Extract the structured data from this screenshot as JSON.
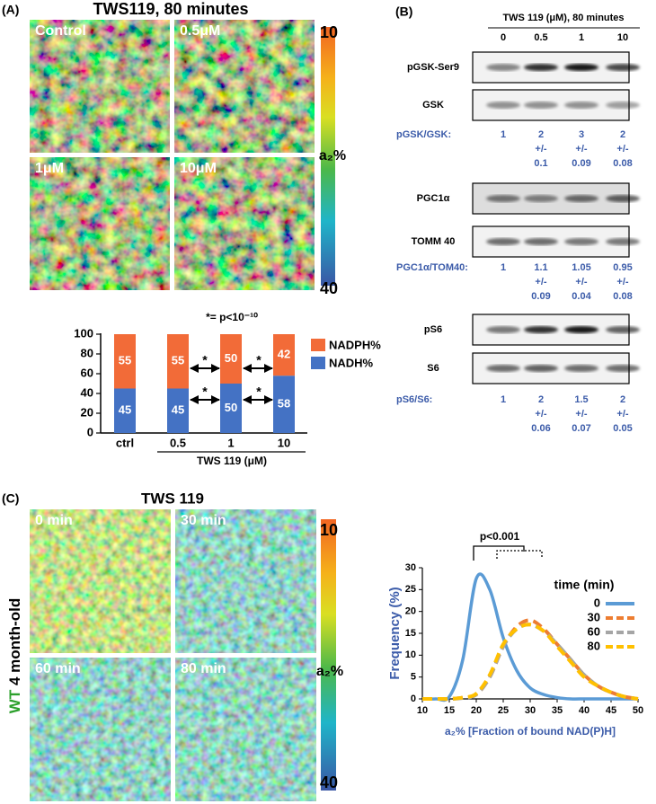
{
  "panel_a": {
    "label": "(A)",
    "title": "TWS119, 80 minutes",
    "images": [
      "Control",
      "0.5μM",
      "1μM",
      "10μM"
    ],
    "colorbar": {
      "top": 10,
      "label": "a₂%",
      "bottom": 40
    }
  },
  "panel_b": {
    "label": "(B)",
    "header": "TWS 119 (μM), 80 minutes",
    "doses": [
      0,
      0.5,
      1,
      10
    ],
    "pm": "+/-",
    "groups": [
      {
        "blots": [
          "pGSK-Ser9",
          "GSK"
        ],
        "ratio": "pGSK/GSK:",
        "values": [
          1,
          2,
          3,
          2
        ],
        "errors": [
          null,
          0.1,
          0.09,
          0.08
        ]
      },
      {
        "blots": [
          "PGC1α",
          "TOMM 40"
        ],
        "ratio": "PGC1α/TOM40:",
        "values": [
          1,
          1.1,
          1.05,
          0.95
        ],
        "errors": [
          null,
          0.09,
          0.04,
          0.08
        ]
      },
      {
        "blots": [
          "pS6",
          "S6"
        ],
        "ratio": "pS6/S6:",
        "values": [
          1,
          2,
          1.5,
          2
        ],
        "errors": [
          null,
          0.06,
          0.07,
          0.05
        ]
      }
    ]
  },
  "panel_c": {
    "label": "(C)",
    "title": "TWS 119",
    "images": [
      "0 min",
      "30 min",
      "60 min",
      "80 min"
    ],
    "side_label": [
      "WT",
      "4 month-old"
    ],
    "colorbar": {
      "top": 10,
      "label": "a₂%",
      "bottom": 40
    }
  },
  "chart_data": [
    {
      "type": "bar",
      "stacked": true,
      "annotation": "*= p<10⁻¹⁰",
      "categories": [
        "ctrl",
        "0.5",
        "1",
        "10"
      ],
      "x_label": "TWS 119 (μM)",
      "series": [
        {
          "name": "NADH%",
          "color": "#4472c4",
          "values": [
            45,
            45,
            50,
            58
          ]
        },
        {
          "name": "NADPH%",
          "color": "#f26b38",
          "values": [
            55,
            55,
            50,
            42
          ]
        }
      ],
      "significance": [
        "*",
        "*",
        "*",
        "*"
      ],
      "ylim": [
        0,
        100
      ],
      "yticks": [
        0,
        20,
        40,
        60,
        80,
        100
      ]
    },
    {
      "type": "line",
      "annotation": "p<0.001",
      "xlabel": "a₂% [Fraction of bound NAD(P)H]",
      "ylabel": "Frequency (%)",
      "legend_title": "time (min)",
      "x": [
        10,
        12.5,
        15,
        17.5,
        20,
        22.5,
        25,
        27.5,
        30,
        32.5,
        35,
        37.5,
        40,
        42.5,
        45,
        47.5,
        50
      ],
      "series": [
        {
          "name": "0",
          "color": "#5b9bd5",
          "dash": false,
          "values": [
            0,
            0,
            0.5,
            9,
            27.5,
            25,
            14,
            6.5,
            2.5,
            1,
            0.3,
            0,
            0,
            0,
            0,
            0,
            0
          ]
        },
        {
          "name": "30",
          "color": "#ed7d31",
          "dash": true,
          "values": [
            0,
            0,
            0,
            0.3,
            1,
            5,
            12,
            16.5,
            18,
            16,
            12.5,
            9,
            5.5,
            3,
            1.5,
            0.5,
            0
          ]
        },
        {
          "name": "60",
          "color": "#a5a5a5",
          "dash": true,
          "values": [
            0,
            0,
            0,
            0.2,
            1,
            5,
            12,
            16,
            17,
            15.5,
            12.5,
            9,
            5.5,
            3,
            1.5,
            0.5,
            0
          ]
        },
        {
          "name": "80",
          "color": "#ffc000",
          "dash": true,
          "values": [
            0,
            0,
            0,
            0.3,
            1.2,
            5.5,
            12.5,
            16,
            17,
            15.5,
            12,
            8.5,
            5,
            3,
            1.5,
            0.5,
            0
          ]
        }
      ],
      "xlim": [
        10,
        50
      ],
      "xticks": [
        10,
        15,
        20,
        25,
        30,
        35,
        40,
        45,
        50
      ],
      "ylim": [
        0,
        30
      ],
      "yticks": [
        0,
        5,
        10,
        15,
        20,
        25,
        30
      ]
    }
  ]
}
